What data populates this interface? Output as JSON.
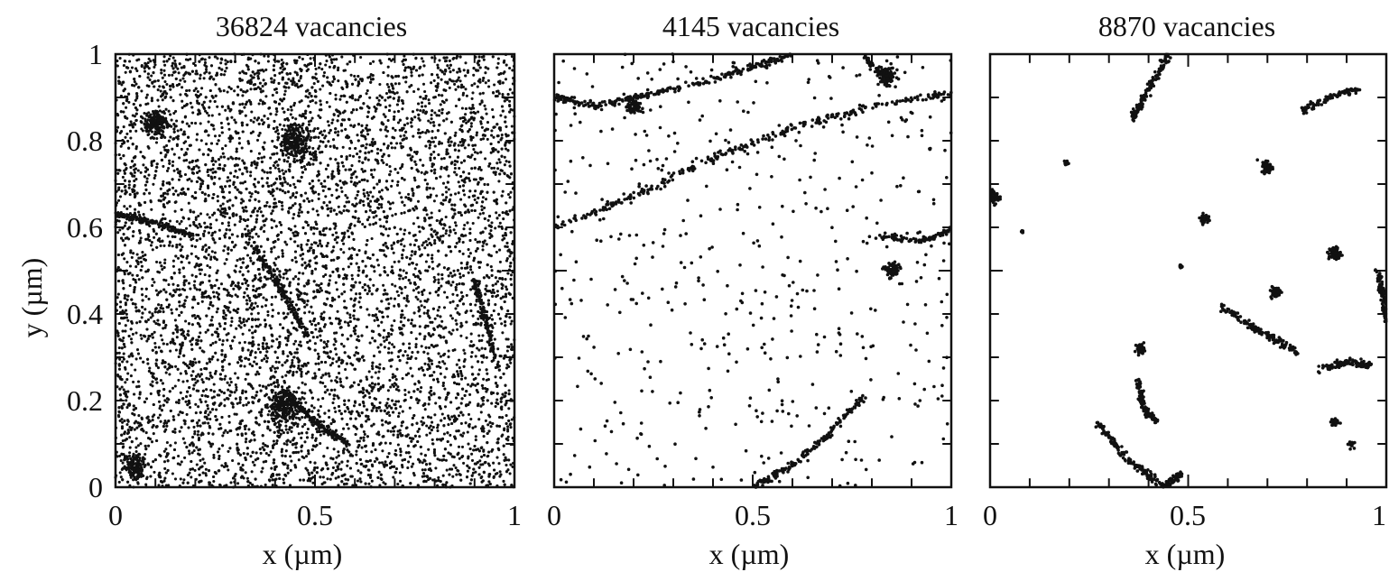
{
  "figure": {
    "panels": [
      {
        "title": "36824 vacancies",
        "xlabel": "x (µm)"
      },
      {
        "title": "4145 vacancies",
        "xlabel": "x (µm)"
      },
      {
        "title": "8870 vacancies",
        "xlabel": "x (µm)"
      }
    ],
    "ylabel": "y (µm)",
    "xticks": [
      "0",
      "0.5",
      "1"
    ],
    "yticks": [
      "0",
      "0.2",
      "0.4",
      "0.6",
      "0.8",
      "1"
    ]
  },
  "chart_data": [
    {
      "type": "scatter",
      "title": "36824 vacancies",
      "xlabel": "x (µm)",
      "ylabel": "y (µm)",
      "xlim": [
        0,
        1
      ],
      "ylim": [
        0,
        1
      ],
      "marker_color": "#111111",
      "distribution": "dense, nearly uniform cloud of vacancies covering the whole 1×1 µm area, with faint line-like accumulations",
      "line_features": [
        {
          "points": [
            [
              0.0,
              0.63
            ],
            [
              0.1,
              0.61
            ],
            [
              0.2,
              0.58
            ]
          ]
        },
        {
          "points": [
            [
              0.35,
              0.55
            ],
            [
              0.42,
              0.45
            ],
            [
              0.48,
              0.35
            ]
          ]
        },
        {
          "points": [
            [
              0.42,
              0.22
            ],
            [
              0.5,
              0.15
            ],
            [
              0.58,
              0.1
            ]
          ]
        },
        {
          "points": [
            [
              0.9,
              0.48
            ],
            [
              0.93,
              0.38
            ],
            [
              0.95,
              0.3
            ]
          ]
        }
      ],
      "clusters": [
        {
          "x": 0.45,
          "y": 0.8,
          "spread": 0.04
        },
        {
          "x": 0.1,
          "y": 0.84,
          "spread": 0.03
        },
        {
          "x": 0.42,
          "y": 0.18,
          "spread": 0.04
        },
        {
          "x": 0.05,
          "y": 0.05,
          "spread": 0.03
        }
      ]
    },
    {
      "type": "scatter",
      "title": "4145 vacancies",
      "xlabel": "x (µm)",
      "ylabel": "",
      "xlim": [
        0,
        1
      ],
      "ylim": [
        0,
        1
      ],
      "marker_color": "#111111",
      "distribution": "sparse scattered vacancies plus vacancies decorating dislocation lines",
      "line_features": [
        {
          "points": [
            [
              0.0,
              0.9
            ],
            [
              0.1,
              0.88
            ],
            [
              0.2,
              0.9
            ],
            [
              0.35,
              0.93
            ],
            [
              0.5,
              0.97
            ],
            [
              0.6,
              1.0
            ]
          ]
        },
        {
          "points": [
            [
              0.0,
              0.6
            ],
            [
              0.2,
              0.67
            ],
            [
              0.4,
              0.76
            ],
            [
              0.6,
              0.83
            ],
            [
              0.8,
              0.88
            ],
            [
              1.0,
              0.91
            ]
          ]
        },
        {
          "points": [
            [
              0.5,
              0.0
            ],
            [
              0.6,
              0.05
            ],
            [
              0.7,
              0.13
            ],
            [
              0.78,
              0.21
            ]
          ]
        },
        {
          "points": [
            [
              0.82,
              0.58
            ],
            [
              0.92,
              0.57
            ],
            [
              1.0,
              0.59
            ]
          ]
        },
        {
          "points": [
            [
              0.78,
              0.99
            ],
            [
              0.82,
              0.96
            ],
            [
              0.84,
              0.93
            ]
          ]
        }
      ],
      "clusters": [
        {
          "x": 0.84,
          "y": 0.95,
          "spread": 0.02
        },
        {
          "x": 0.85,
          "y": 0.5,
          "spread": 0.02
        },
        {
          "x": 0.2,
          "y": 0.88,
          "spread": 0.02
        }
      ]
    },
    {
      "type": "scatter",
      "title": "8870 vacancies",
      "xlabel": "x (µm)",
      "ylabel": "",
      "xlim": [
        0,
        1
      ],
      "ylim": [
        0,
        1
      ],
      "marker_color": "#111111",
      "distribution": "vacancies almost entirely clustered into short dislocation segments and small clusters",
      "line_features": [
        {
          "points": [
            [
              0.36,
              0.85
            ],
            [
              0.4,
              0.92
            ],
            [
              0.45,
              1.0
            ]
          ]
        },
        {
          "points": [
            [
              0.79,
              0.87
            ],
            [
              0.86,
              0.9
            ],
            [
              0.93,
              0.92
            ]
          ]
        },
        {
          "points": [
            [
              0.58,
              0.42
            ],
            [
              0.68,
              0.36
            ],
            [
              0.78,
              0.31
            ]
          ]
        },
        {
          "points": [
            [
              0.83,
              0.27
            ],
            [
              0.9,
              0.29
            ],
            [
              0.96,
              0.28
            ]
          ]
        },
        {
          "points": [
            [
              0.27,
              0.15
            ],
            [
              0.35,
              0.06
            ],
            [
              0.44,
              0.0
            ],
            [
              0.48,
              0.03
            ]
          ]
        },
        {
          "points": [
            [
              0.37,
              0.25
            ],
            [
              0.39,
              0.18
            ],
            [
              0.42,
              0.15
            ]
          ]
        },
        {
          "points": [
            [
              0.98,
              0.5
            ],
            [
              0.99,
              0.44
            ],
            [
              1.0,
              0.38
            ]
          ]
        }
      ],
      "clusters": [
        {
          "x": 0.7,
          "y": 0.74,
          "spread": 0.015
        },
        {
          "x": 0.54,
          "y": 0.62,
          "spread": 0.01
        },
        {
          "x": 0.72,
          "y": 0.45,
          "spread": 0.012
        },
        {
          "x": 0.38,
          "y": 0.32,
          "spread": 0.01
        },
        {
          "x": 0.87,
          "y": 0.54,
          "spread": 0.015
        },
        {
          "x": 0.01,
          "y": 0.67,
          "spread": 0.015
        },
        {
          "x": 0.87,
          "y": 0.15,
          "spread": 0.01
        },
        {
          "x": 0.91,
          "y": 0.1,
          "spread": 0.008
        },
        {
          "x": 0.19,
          "y": 0.75,
          "spread": 0.005
        },
        {
          "x": 0.48,
          "y": 0.51,
          "spread": 0.005
        },
        {
          "x": 0.08,
          "y": 0.59,
          "spread": 0.005
        }
      ]
    }
  ]
}
